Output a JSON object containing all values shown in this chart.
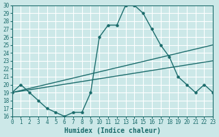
{
  "xlabel": "Humidex (Indice chaleur)",
  "xlim": [
    0,
    23
  ],
  "ylim": [
    16,
    30
  ],
  "xticks": [
    0,
    1,
    2,
    3,
    4,
    5,
    6,
    7,
    8,
    9,
    10,
    11,
    12,
    13,
    14,
    15,
    16,
    17,
    18,
    19,
    20,
    21,
    22,
    23
  ],
  "yticks": [
    16,
    17,
    18,
    19,
    20,
    21,
    22,
    23,
    24,
    25,
    26,
    27,
    28,
    29,
    30
  ],
  "bg_color": "#cce8e8",
  "line_color": "#1a6b6b",
  "grid_color": "#ffffff",
  "line1_x": [
    0,
    1,
    2,
    3,
    4,
    5,
    6,
    7,
    8,
    9,
    10,
    11,
    12,
    13,
    14,
    15,
    16,
    17,
    18,
    19,
    20,
    21,
    22,
    23
  ],
  "line1_y": [
    19,
    20,
    19,
    18,
    17,
    16.5,
    16,
    16.5,
    16.5,
    19,
    26,
    27.5,
    27.5,
    30,
    30,
    29,
    27,
    25,
    23.5,
    21,
    20,
    19,
    20,
    19
  ],
  "line2_x": [
    0,
    23
  ],
  "line2_y": [
    19,
    25
  ],
  "line3_x": [
    0,
    23
  ],
  "line3_y": [
    19,
    23
  ],
  "font_family": "monospace",
  "tick_fontsize": 5.5,
  "label_fontsize": 7
}
